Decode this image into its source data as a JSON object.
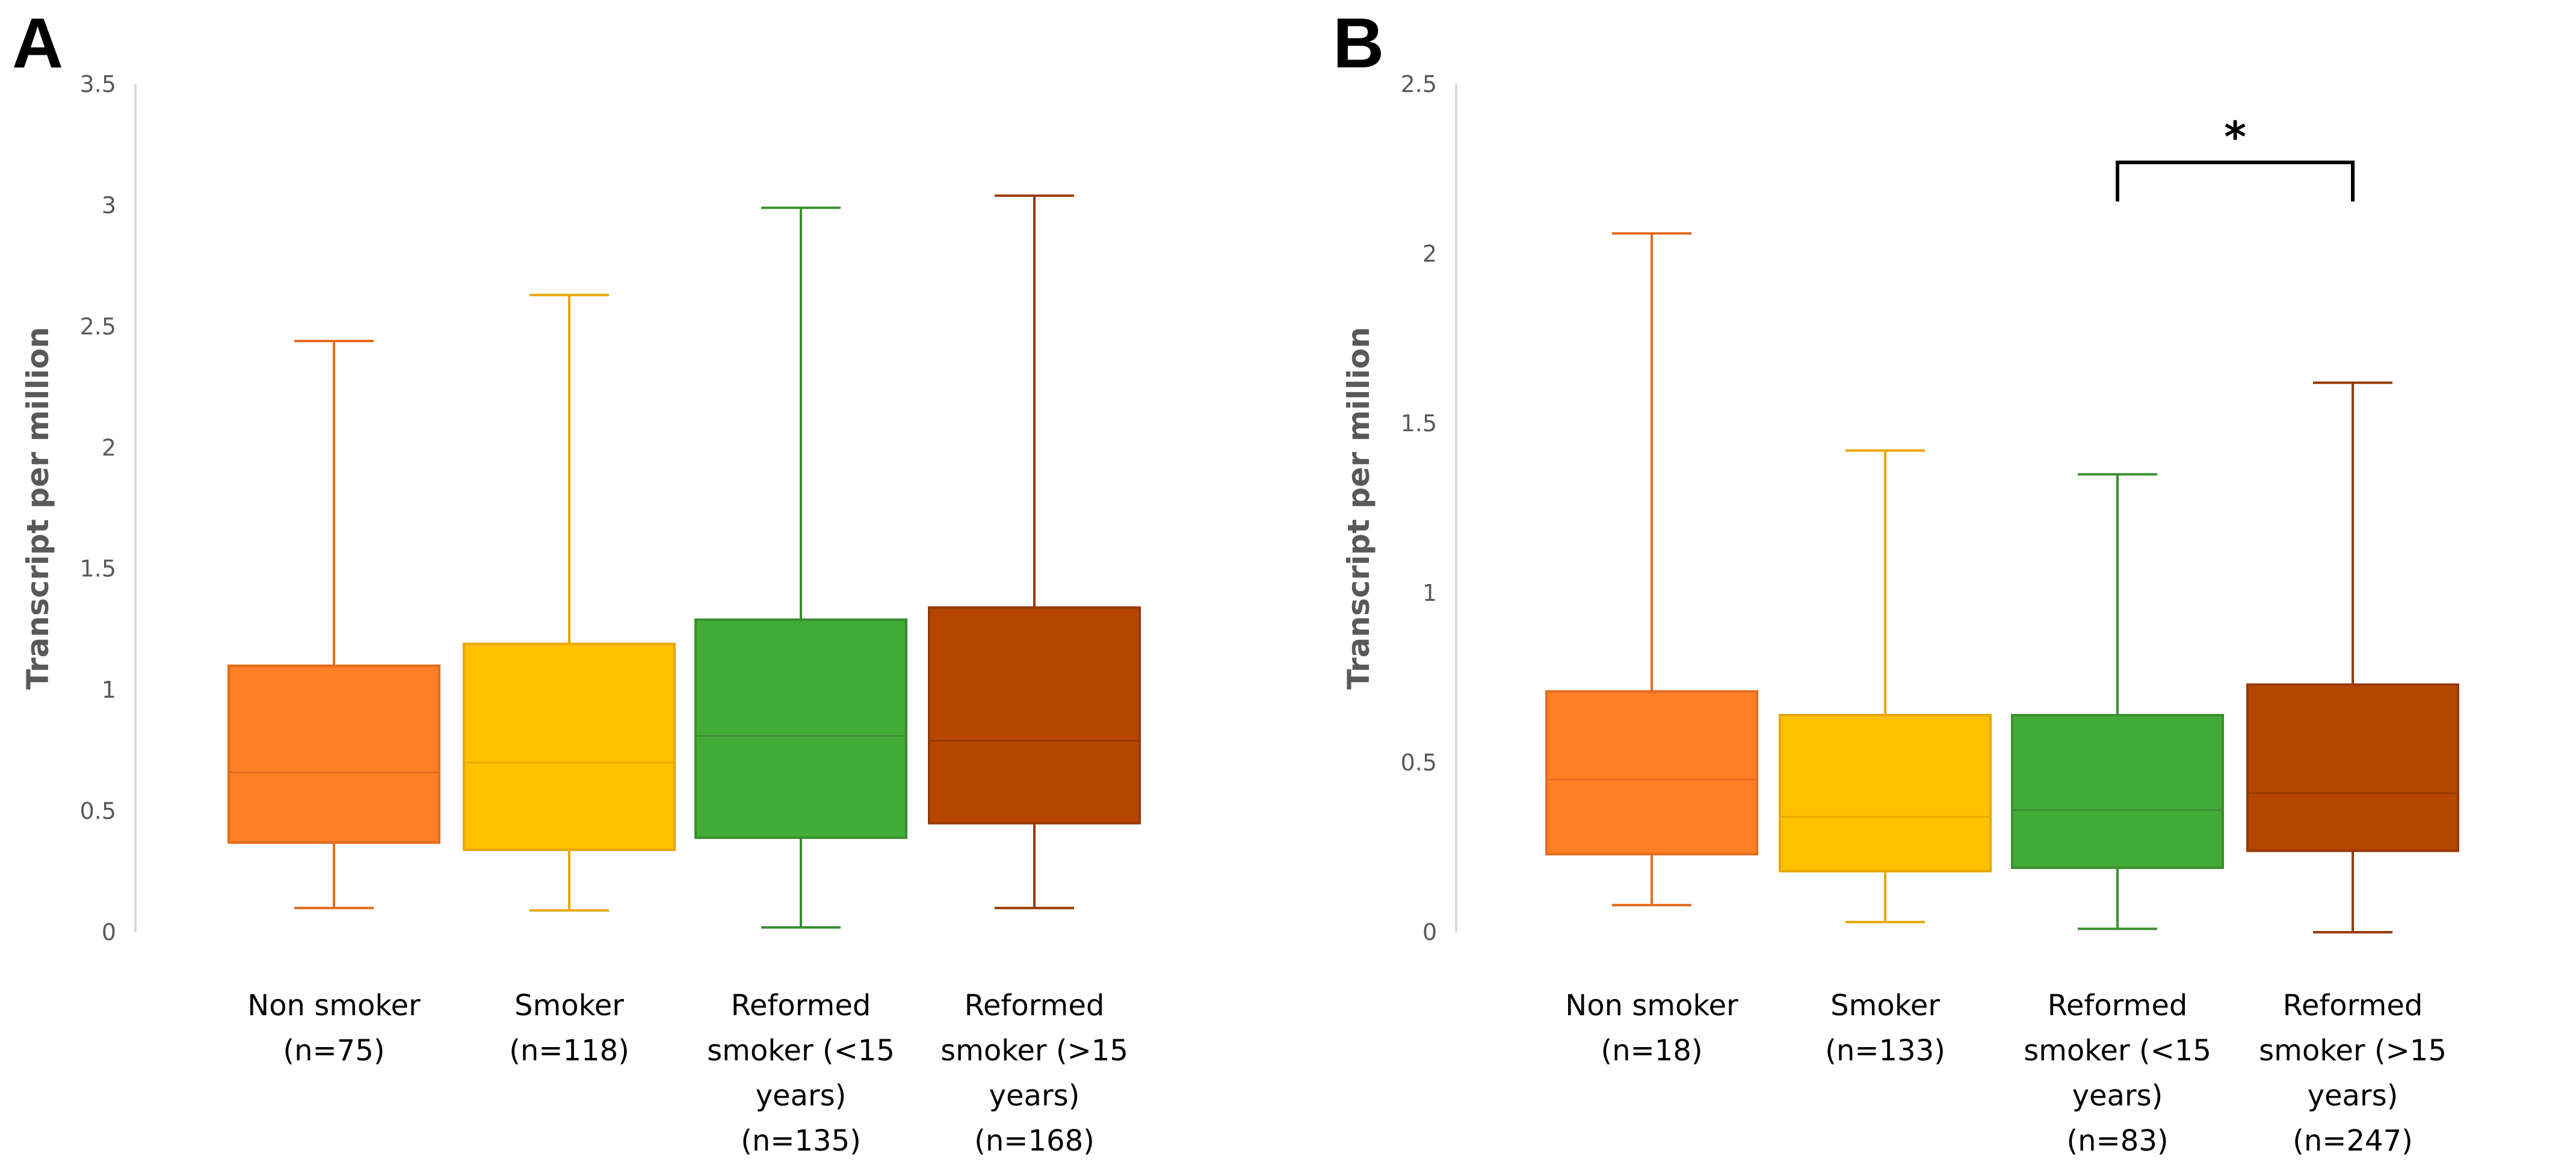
{
  "chart_data": [
    {
      "type": "box",
      "panel": "A",
      "ylabel": "Transcript per million",
      "ylim": [
        0,
        3.5
      ],
      "yticks": [
        "0",
        "0.5",
        "1",
        "1.5",
        "2",
        "2.5",
        "3",
        "3.5"
      ],
      "ytick_values": [
        0,
        0.5,
        1,
        1.5,
        2,
        2.5,
        3,
        3.5
      ],
      "categories": [
        [
          "Non smoker",
          "(n=75)"
        ],
        [
          "Smoker",
          "(n=118)"
        ],
        [
          "Reformed",
          "smoker (<15",
          "years)",
          "(n=135)"
        ],
        [
          "Reformed",
          "smoker (>15",
          "years)",
          "(n=168)"
        ]
      ],
      "boxes": [
        {
          "min": 0.1,
          "q1": 0.37,
          "median": 0.66,
          "q3": 1.1,
          "max": 2.44,
          "fill": "#FF7F27",
          "stroke": "#E46C1E"
        },
        {
          "min": 0.09,
          "q1": 0.34,
          "median": 0.7,
          "q3": 1.19,
          "max": 2.63,
          "fill": "#FFC000",
          "stroke": "#E6A800"
        },
        {
          "min": 0.02,
          "q1": 0.39,
          "median": 0.81,
          "q3": 1.29,
          "max": 2.99,
          "fill": "#43AC37",
          "stroke": "#3A8F30"
        },
        {
          "min": 0.1,
          "q1": 0.45,
          "median": 0.79,
          "q3": 1.34,
          "max": 3.04,
          "fill": "#B54600",
          "stroke": "#963A00"
        }
      ]
    },
    {
      "type": "box",
      "panel": "B",
      "ylabel": "Transcript per million",
      "ylim": [
        0,
        2.5
      ],
      "yticks": [
        "0",
        "0.5",
        "1",
        "1.5",
        "2",
        "2.5"
      ],
      "ytick_values": [
        0,
        0.5,
        1,
        1.5,
        2,
        2.5
      ],
      "categories": [
        [
          "Non smoker",
          "(n=18)"
        ],
        [
          "Smoker",
          "(n=133)"
        ],
        [
          "Reformed",
          "smoker (<15",
          "years)",
          "(n=83)"
        ],
        [
          "Reformed",
          "smoker (>15",
          "years)",
          "(n=247)"
        ]
      ],
      "boxes": [
        {
          "min": 0.08,
          "q1": 0.23,
          "median": 0.45,
          "q3": 0.71,
          "max": 2.06,
          "fill": "#FF7F27",
          "stroke": "#E46C1E"
        },
        {
          "min": 0.03,
          "q1": 0.18,
          "median": 0.34,
          "q3": 0.64,
          "max": 1.42,
          "fill": "#FFC000",
          "stroke": "#E6A800"
        },
        {
          "min": 0.01,
          "q1": 0.19,
          "median": 0.36,
          "q3": 0.64,
          "max": 1.35,
          "fill": "#43AC37",
          "stroke": "#3A8F30"
        },
        {
          "min": 0.0,
          "q1": 0.24,
          "median": 0.41,
          "q3": 0.73,
          "max": 1.62,
          "fill": "#B54600",
          "stroke": "#963A00"
        }
      ],
      "significance": {
        "from": 2,
        "to": 3,
        "label": "*"
      }
    }
  ]
}
